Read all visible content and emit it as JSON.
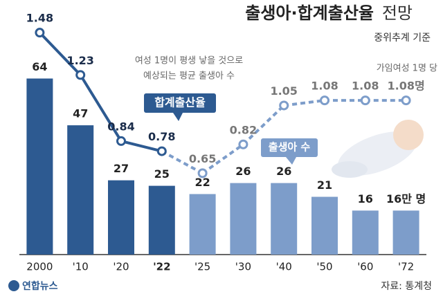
{
  "chart_data": {
    "type": "bar_line",
    "title": "출생아·합계출산율",
    "title_suffix": "전망",
    "subtitle": "중위추계 기준",
    "categories": [
      "2000",
      "'10",
      "'20",
      "'22",
      "'25",
      "'30",
      "'40",
      "'50",
      "'60",
      "'72"
    ],
    "ylim": [
      0,
      85
    ],
    "y2lim": [
      0.17,
      1.55
    ],
    "series": [
      {
        "name": "출생아 수",
        "type": "bar",
        "values": [
          64,
          47,
          27,
          25,
          22,
          26,
          26,
          21,
          16,
          16
        ],
        "value_labels": [
          "64",
          "47",
          "27",
          "25",
          "22",
          "26",
          "26",
          "21",
          "16",
          "16만 명"
        ],
        "colors": [
          "#2d5a91",
          "#2d5a91",
          "#2d5a91",
          "#2d5a91",
          "#7d9dca",
          "#7d9dca",
          "#7d9dca",
          "#7d9dca",
          "#7d9dca",
          "#7d9dca"
        ]
      },
      {
        "name": "합계출산율",
        "type": "line",
        "axis": "y2",
        "values": [
          1.48,
          1.23,
          0.84,
          0.78,
          0.65,
          0.82,
          1.05,
          1.08,
          1.08,
          1.08
        ],
        "value_labels": [
          "1.48",
          "1.23",
          "0.84",
          "0.78",
          "0.65",
          "0.82",
          "1.05",
          "1.08",
          "1.08",
          "1.08명"
        ],
        "colors": [
          "#2d5a91",
          "#2d5a91",
          "#2d5a91",
          "#2d5a91",
          "#7d9dca",
          "#7d9dca",
          "#7d9dca",
          "#7d9dca",
          "#7d9dca",
          "#7d9dca"
        ]
      }
    ],
    "annotations": [
      "여성 1명이 평생 낳을 것으로",
      "예상되는 평균 출생아 수",
      "가임여성 1명 당"
    ],
    "logo": "연합뉴스",
    "source": "자료: 통계청"
  }
}
